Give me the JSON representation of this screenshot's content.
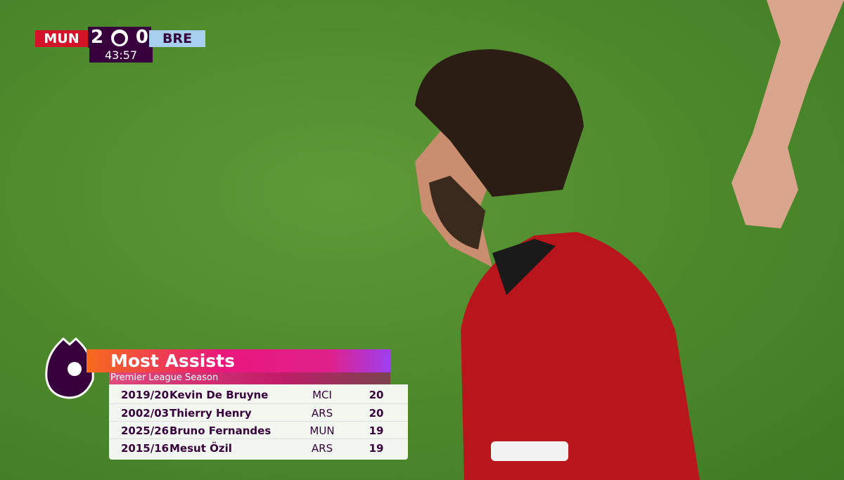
{
  "scorebug": {
    "home": "MUN",
    "home_score": 2,
    "away_score": 0,
    "away": "BRE",
    "clock": "43:57"
  },
  "graphic": {
    "title": "Most Assists",
    "subtitle": "Premier League Season",
    "rows": [
      [
        "2019/20",
        "Kevin De Bruyne",
        "MCI",
        20
      ],
      [
        "2002/03",
        "Thierry Henry",
        "ARS",
        20
      ],
      [
        "2025/26",
        "Bruno Fernandes",
        "MUN",
        19
      ],
      [
        "2015/16",
        "Mesut Özil",
        "ARS",
        19
      ]
    ]
  }
}
